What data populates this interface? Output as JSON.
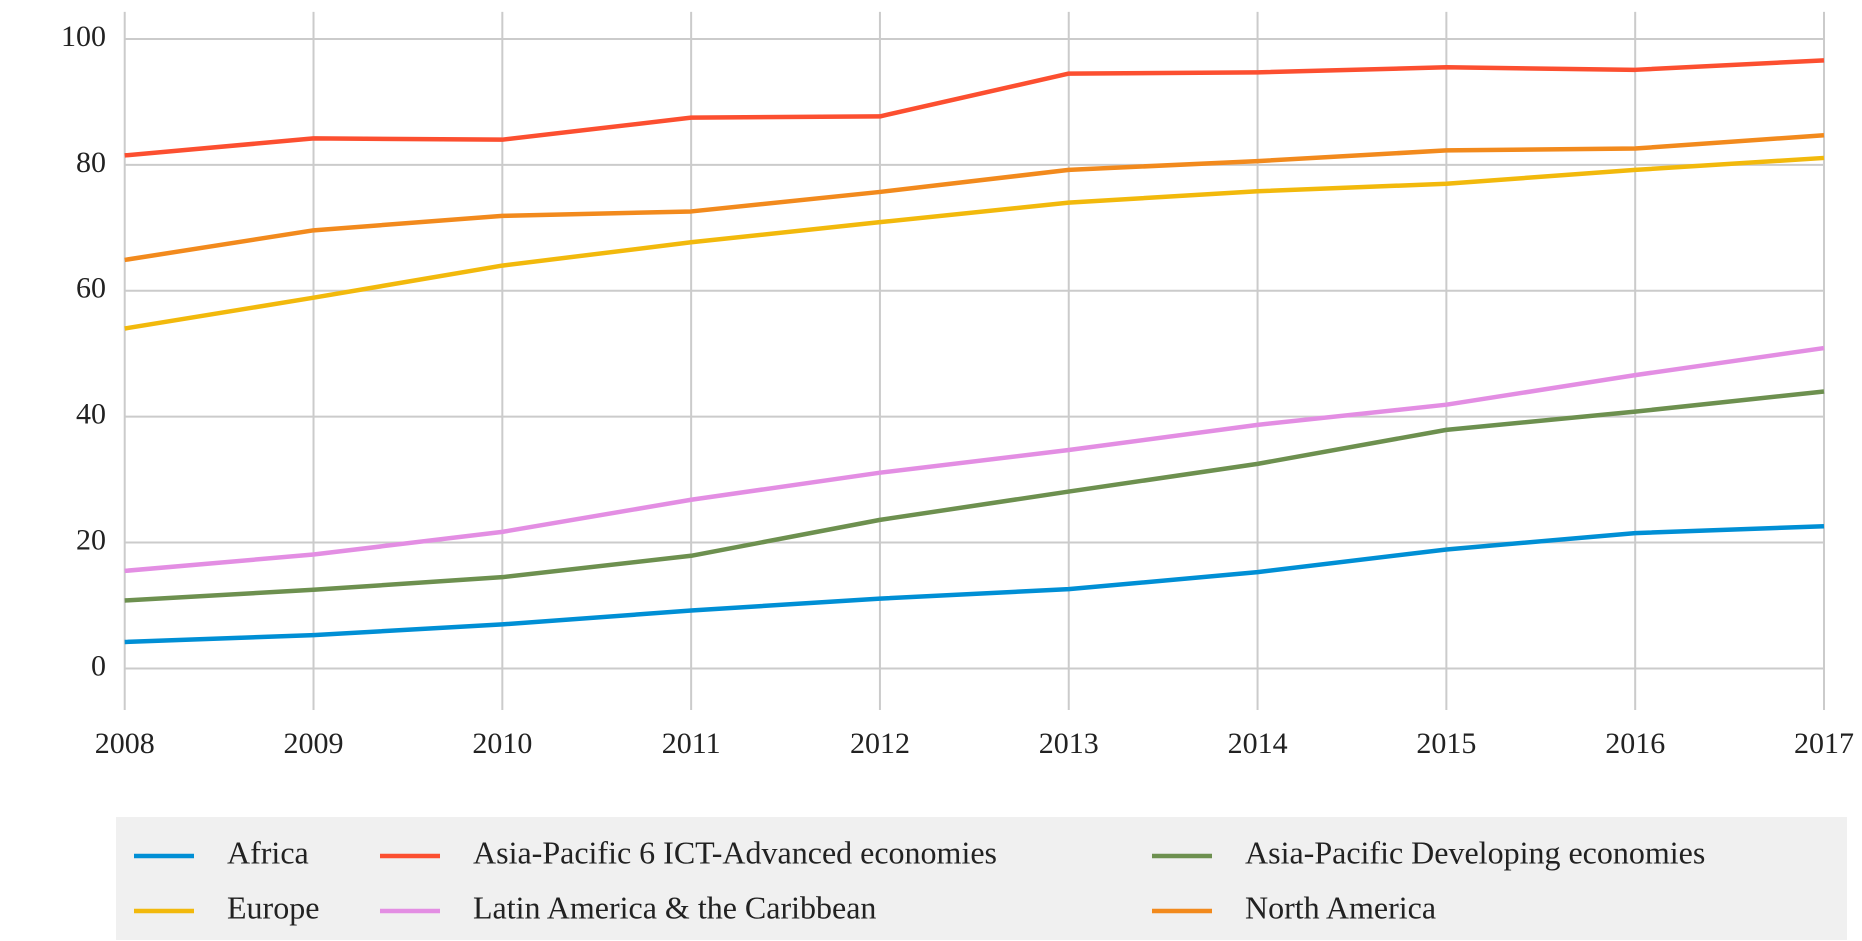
{
  "chart_data": {
    "type": "line",
    "x": [
      2008,
      2009,
      2010,
      2011,
      2012,
      2013,
      2014,
      2015,
      2016,
      2017
    ],
    "xlim": [
      2008,
      2017
    ],
    "xticks": [
      2008,
      2009,
      2010,
      2011,
      2012,
      2013,
      2014,
      2015,
      2016,
      2017
    ],
    "ylim": [
      -6.6,
      104.3
    ],
    "yticks": [
      0,
      20,
      40,
      60,
      80,
      100
    ],
    "grid": true,
    "legend": "bottom",
    "series": [
      {
        "name": "Africa",
        "color": "#008fd5",
        "values": [
          4.2,
          5.3,
          7.0,
          9.2,
          11.1,
          12.6,
          15.3,
          18.9,
          21.5,
          22.6
        ]
      },
      {
        "name": "Asia-Pacific 6 ICT-Advanced economies",
        "color": "#fc4f30",
        "values": [
          81.5,
          84.2,
          84.0,
          87.5,
          87.7,
          94.5,
          94.7,
          95.5,
          95.1,
          96.6
        ]
      },
      {
        "name": "Asia-Pacific Developing economies",
        "color": "#6d904f",
        "values": [
          10.8,
          12.5,
          14.5,
          17.9,
          23.6,
          28.1,
          32.5,
          37.9,
          40.8,
          44.0
        ]
      },
      {
        "name": "Europe",
        "color": "#f2b90c",
        "values": [
          54.0,
          58.9,
          64.0,
          67.7,
          70.9,
          74.0,
          75.8,
          77.0,
          79.2,
          81.1
        ]
      },
      {
        "name": "Latin America & the Caribbean",
        "color": "#e38ee3",
        "values": [
          15.5,
          18.1,
          21.7,
          26.8,
          31.1,
          34.7,
          38.7,
          41.9,
          46.6,
          50.9
        ]
      },
      {
        "name": "North America",
        "color": "#f28a1d",
        "values": [
          64.9,
          69.6,
          71.9,
          72.6,
          75.7,
          79.2,
          80.6,
          82.3,
          82.6,
          84.7
        ]
      }
    ]
  }
}
